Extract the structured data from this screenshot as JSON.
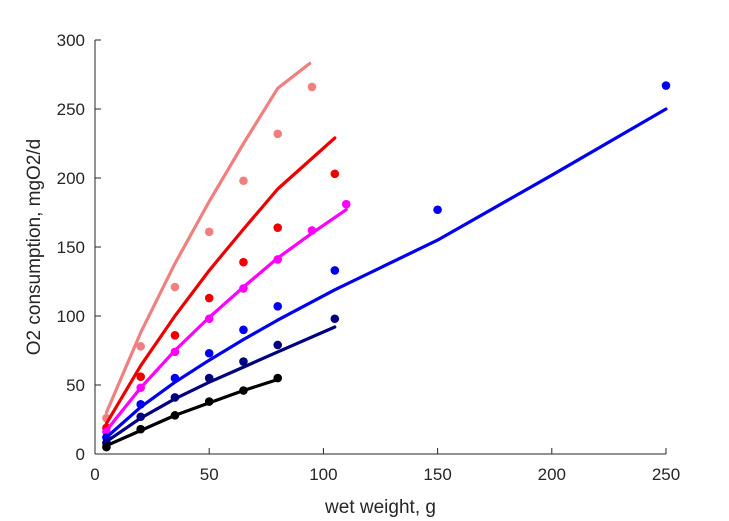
{
  "chart_data": {
    "type": "scatter",
    "xlabel": "wet weight, g",
    "ylabel": "O2 consumption, mgO2/d",
    "xlim": [
      0,
      250
    ],
    "ylim": [
      0,
      300
    ],
    "xticks": [
      0,
      50,
      100,
      150,
      200,
      250
    ],
    "yticks": [
      0,
      50,
      100,
      150,
      200,
      250,
      300
    ],
    "grid": false,
    "series": [
      {
        "color": "#f08080",
        "points": [
          [
            5,
            26
          ],
          [
            20,
            78
          ],
          [
            35,
            121
          ],
          [
            50,
            161
          ],
          [
            65,
            198
          ],
          [
            80,
            232
          ],
          [
            95,
            266
          ]
        ],
        "fit_line": [
          [
            5,
            30
          ],
          [
            20,
            88
          ],
          [
            35,
            138
          ],
          [
            50,
            183
          ],
          [
            65,
            225
          ],
          [
            80,
            265
          ],
          [
            94,
            283
          ]
        ]
      },
      {
        "color": "#ee0000",
        "points": [
          [
            5,
            19
          ],
          [
            20,
            56
          ],
          [
            35,
            86
          ],
          [
            50,
            113
          ],
          [
            65,
            139
          ],
          [
            80,
            164
          ],
          [
            105,
            203
          ]
        ],
        "fit_line": [
          [
            5,
            22
          ],
          [
            20,
            64
          ],
          [
            35,
            100
          ],
          [
            50,
            133
          ],
          [
            65,
            163
          ],
          [
            80,
            192
          ],
          [
            105,
            229
          ]
        ]
      },
      {
        "color": "#ff00ff",
        "points": [
          [
            5,
            16
          ],
          [
            20,
            48
          ],
          [
            35,
            74
          ],
          [
            50,
            98
          ],
          [
            65,
            120
          ],
          [
            80,
            141
          ],
          [
            95,
            162
          ],
          [
            110,
            181
          ]
        ],
        "fit_line": [
          [
            5,
            17
          ],
          [
            20,
            48
          ],
          [
            35,
            75
          ],
          [
            50,
            99
          ],
          [
            65,
            121
          ],
          [
            80,
            142
          ],
          [
            95,
            160
          ],
          [
            110,
            177
          ]
        ]
      },
      {
        "color": "#0000ee",
        "points": [
          [
            5,
            12
          ],
          [
            20,
            36
          ],
          [
            35,
            55
          ],
          [
            50,
            73
          ],
          [
            65,
            90
          ],
          [
            80,
            107
          ],
          [
            105,
            133
          ],
          [
            150,
            177
          ],
          [
            250,
            267
          ]
        ],
        "fit_line": [
          [
            5,
            12
          ],
          [
            20,
            34
          ],
          [
            35,
            52
          ],
          [
            50,
            68
          ],
          [
            65,
            83
          ],
          [
            80,
            97
          ],
          [
            105,
            119
          ],
          [
            150,
            155
          ],
          [
            200,
            202
          ],
          [
            250,
            250
          ]
        ]
      },
      {
        "color": "#000080",
        "points": [
          [
            5,
            8
          ],
          [
            20,
            27
          ],
          [
            35,
            41
          ],
          [
            50,
            55
          ],
          [
            65,
            67
          ],
          [
            80,
            79
          ],
          [
            105,
            98
          ]
        ],
        "fit_line": [
          [
            5,
            9
          ],
          [
            20,
            26
          ],
          [
            35,
            40
          ],
          [
            50,
            52
          ],
          [
            65,
            63
          ],
          [
            80,
            74
          ],
          [
            105,
            92
          ]
        ]
      },
      {
        "color": "#000000",
        "points": [
          [
            5,
            5
          ],
          [
            20,
            18
          ],
          [
            35,
            28
          ],
          [
            50,
            38
          ],
          [
            65,
            46
          ],
          [
            80,
            55
          ]
        ],
        "fit_line": [
          [
            5,
            6
          ],
          [
            20,
            17
          ],
          [
            35,
            28
          ],
          [
            50,
            37
          ],
          [
            65,
            46
          ],
          [
            80,
            54
          ]
        ]
      }
    ]
  }
}
